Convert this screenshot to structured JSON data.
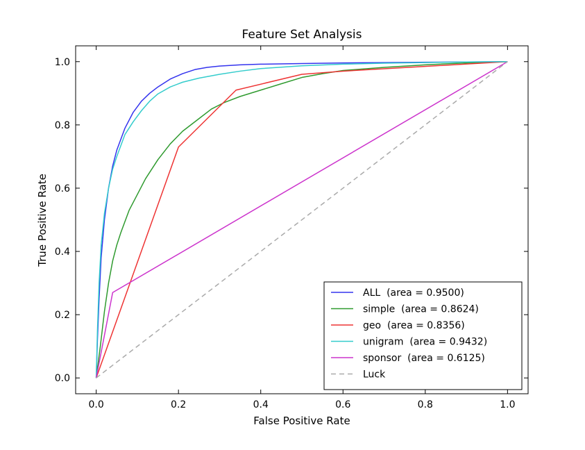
{
  "chart_data": {
    "type": "line",
    "title": "Feature Set Analysis",
    "xlabel": "False Positive Rate",
    "ylabel": "True Positive Rate",
    "xlim": [
      -0.05,
      1.05
    ],
    "ylim": [
      -0.05,
      1.05
    ],
    "xticks": [
      0.0,
      0.2,
      0.4,
      0.6,
      0.8,
      1.0
    ],
    "xtick_labels": [
      "0.0",
      "0.2",
      "0.4",
      "0.6",
      "0.8",
      "1.0"
    ],
    "yticks": [
      0.0,
      0.2,
      0.4,
      0.6,
      0.8,
      1.0
    ],
    "ytick_labels": [
      "0.0",
      "0.2",
      "0.4",
      "0.6",
      "0.8",
      "1.0"
    ],
    "grid": false,
    "legend_position": "lower-right",
    "series": [
      {
        "name": "ALL  (area = 0.9500)",
        "color": "#3333ee",
        "dash": "solid",
        "x": [
          0.0,
          0.003,
          0.007,
          0.012,
          0.02,
          0.03,
          0.04,
          0.05,
          0.07,
          0.09,
          0.11,
          0.13,
          0.15,
          0.18,
          0.21,
          0.24,
          0.27,
          0.3,
          0.35,
          0.4,
          0.5,
          0.6,
          0.7,
          0.8,
          0.9,
          1.0
        ],
        "y": [
          0.0,
          0.12,
          0.25,
          0.38,
          0.5,
          0.6,
          0.67,
          0.72,
          0.79,
          0.84,
          0.875,
          0.9,
          0.92,
          0.945,
          0.962,
          0.975,
          0.982,
          0.986,
          0.99,
          0.992,
          0.994,
          0.996,
          0.997,
          0.998,
          0.999,
          1.0
        ]
      },
      {
        "name": "simple  (area = 0.8624)",
        "color": "#2e9a2e",
        "dash": "solid",
        "x": [
          0.0,
          0.01,
          0.02,
          0.03,
          0.04,
          0.05,
          0.06,
          0.08,
          0.1,
          0.12,
          0.15,
          0.18,
          0.21,
          0.25,
          0.28,
          0.31,
          0.35,
          0.4,
          0.45,
          0.5,
          0.55,
          0.6,
          0.7,
          0.8,
          0.9,
          1.0
        ],
        "y": [
          0.0,
          0.1,
          0.21,
          0.3,
          0.37,
          0.42,
          0.46,
          0.53,
          0.58,
          0.63,
          0.69,
          0.74,
          0.78,
          0.82,
          0.85,
          0.87,
          0.89,
          0.91,
          0.93,
          0.95,
          0.962,
          0.972,
          0.982,
          0.99,
          0.996,
          1.0
        ]
      },
      {
        "name": "geo  (area = 0.8356)",
        "color": "#ee3333",
        "dash": "solid",
        "x": [
          0.0,
          0.2,
          0.34,
          0.5,
          0.6,
          1.0
        ],
        "y": [
          0.0,
          0.73,
          0.91,
          0.96,
          0.97,
          1.0
        ]
      },
      {
        "name": "unigram  (area = 0.9432)",
        "color": "#33cccc",
        "dash": "solid",
        "x": [
          0.0,
          0.003,
          0.007,
          0.012,
          0.02,
          0.03,
          0.04,
          0.05,
          0.07,
          0.09,
          0.11,
          0.13,
          0.15,
          0.18,
          0.21,
          0.25,
          0.3,
          0.35,
          0.4,
          0.5,
          0.6,
          0.7,
          0.8,
          0.9,
          1.0
        ],
        "y": [
          0.0,
          0.15,
          0.3,
          0.42,
          0.52,
          0.6,
          0.66,
          0.7,
          0.77,
          0.81,
          0.845,
          0.875,
          0.898,
          0.92,
          0.935,
          0.948,
          0.96,
          0.97,
          0.978,
          0.987,
          0.992,
          0.995,
          0.997,
          0.999,
          1.0
        ]
      },
      {
        "name": "sponsor  (area = 0.6125)",
        "color": "#cc33cc",
        "dash": "solid",
        "x": [
          0.0,
          0.04,
          1.0
        ],
        "y": [
          0.0,
          0.27,
          1.0
        ]
      },
      {
        "name": "Luck",
        "color": "#aaaaaa",
        "dash": "dashed",
        "x": [
          0.0,
          1.0
        ],
        "y": [
          0.0,
          1.0
        ]
      }
    ]
  }
}
